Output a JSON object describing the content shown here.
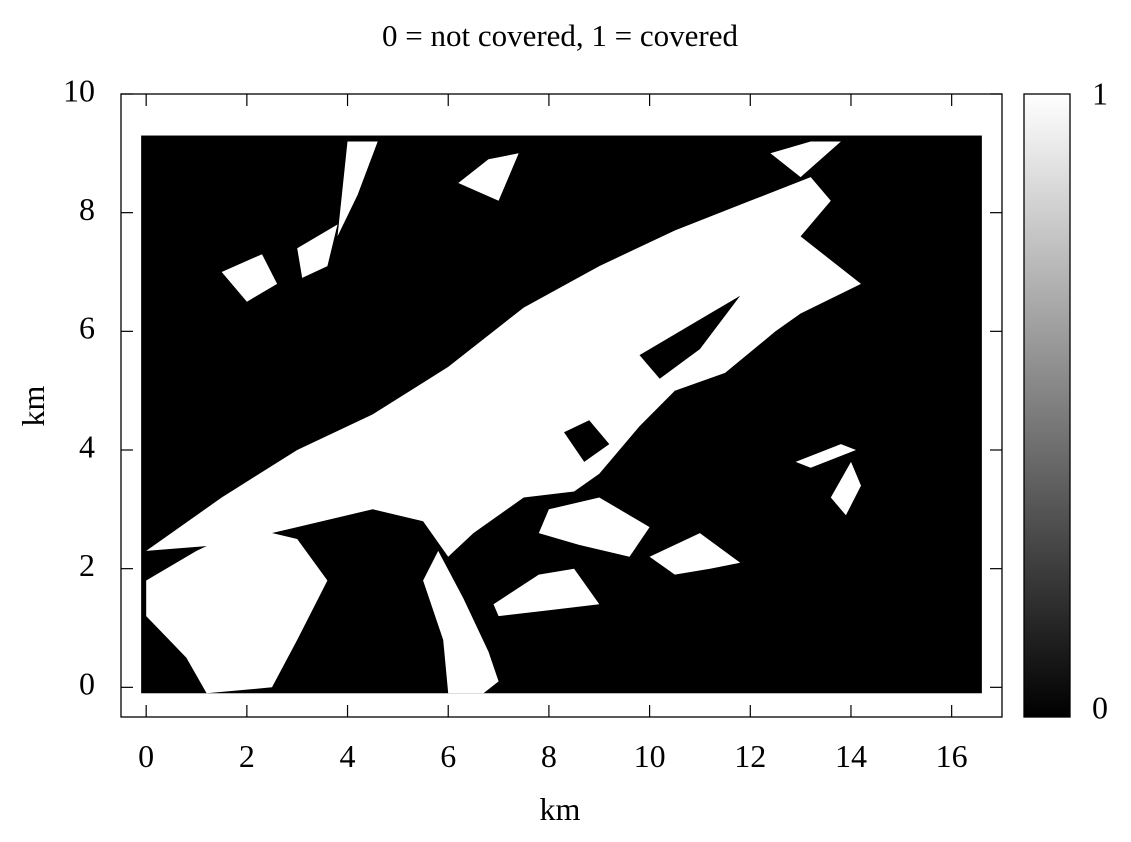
{
  "chart_data": {
    "type": "heatmap",
    "title": "0 = not covered, 1 = covered",
    "xlabel": "km",
    "ylabel": "km",
    "xlim": [
      -0.5,
      17.0
    ],
    "ylim": [
      -0.5,
      10.0
    ],
    "x_ticks": [
      0,
      2,
      4,
      6,
      8,
      10,
      12,
      14,
      16
    ],
    "x_tick_labels": [
      "0",
      "2",
      "4",
      "6",
      "8",
      "10",
      "12",
      "14",
      "16"
    ],
    "y_ticks": [
      0,
      2,
      4,
      6,
      8,
      10
    ],
    "y_tick_labels": [
      "0",
      "2",
      "4",
      "6",
      "8",
      "10"
    ],
    "data_extent": {
      "x": [
        -0.1,
        16.6
      ],
      "y": [
        -0.1,
        9.3
      ]
    },
    "colorbar": {
      "min": 0,
      "max": 1,
      "min_label": "0",
      "max_label": "1",
      "colors": [
        "#000000",
        "#ffffff"
      ]
    },
    "values_description_note": null,
    "covered_regions": [
      {
        "name": "main-band",
        "polygon": [
          [
            0.0,
            2.3
          ],
          [
            1.5,
            3.2
          ],
          [
            3.0,
            4.0
          ],
          [
            4.5,
            4.6
          ],
          [
            6.0,
            5.4
          ],
          [
            7.5,
            6.4
          ],
          [
            9.0,
            7.1
          ],
          [
            10.5,
            7.7
          ],
          [
            12.0,
            8.2
          ],
          [
            13.2,
            8.6
          ],
          [
            13.6,
            8.2
          ],
          [
            13.0,
            7.6
          ],
          [
            14.2,
            6.8
          ],
          [
            13.0,
            6.3
          ],
          [
            12.5,
            6.0
          ],
          [
            11.5,
            5.3
          ],
          [
            10.5,
            5.0
          ],
          [
            9.8,
            4.4
          ],
          [
            9.0,
            3.6
          ],
          [
            8.5,
            3.3
          ],
          [
            7.5,
            3.2
          ],
          [
            6.5,
            2.6
          ],
          [
            6.0,
            2.2
          ],
          [
            5.5,
            2.8
          ],
          [
            4.5,
            3.0
          ],
          [
            3.0,
            2.7
          ],
          [
            1.5,
            2.4
          ]
        ]
      },
      {
        "name": "left-lower",
        "polygon": [
          [
            0.0,
            1.8
          ],
          [
            1.0,
            2.3
          ],
          [
            2.0,
            2.7
          ],
          [
            3.0,
            2.5
          ],
          [
            3.6,
            1.8
          ],
          [
            3.0,
            0.8
          ],
          [
            2.5,
            0.0
          ],
          [
            1.2,
            -0.1
          ],
          [
            0.8,
            0.5
          ],
          [
            0.0,
            1.2
          ]
        ]
      },
      {
        "name": "lower-mid",
        "polygon": [
          [
            5.8,
            2.3
          ],
          [
            6.3,
            1.5
          ],
          [
            6.8,
            0.6
          ],
          [
            7.0,
            0.1
          ],
          [
            6.7,
            -0.1
          ],
          [
            6.0,
            -0.1
          ],
          [
            5.9,
            0.8
          ],
          [
            5.5,
            1.8
          ]
        ]
      },
      {
        "name": "southern-lobe",
        "polygon": [
          [
            6.9,
            1.4
          ],
          [
            7.8,
            1.9
          ],
          [
            8.5,
            2.0
          ],
          [
            9.0,
            1.4
          ],
          [
            8.0,
            1.3
          ],
          [
            7.0,
            1.2
          ]
        ]
      },
      {
        "name": "east-lobe",
        "polygon": [
          [
            10.0,
            2.2
          ],
          [
            11.0,
            2.6
          ],
          [
            11.8,
            2.1
          ],
          [
            11.2,
            2.0
          ],
          [
            10.5,
            1.9
          ]
        ]
      },
      {
        "name": "mid-lobe",
        "polygon": [
          [
            8.0,
            3.0
          ],
          [
            9.0,
            3.2
          ],
          [
            10.0,
            2.7
          ],
          [
            9.6,
            2.2
          ],
          [
            8.6,
            2.4
          ],
          [
            7.8,
            2.6
          ]
        ]
      },
      {
        "name": "north-ridge-1",
        "polygon": [
          [
            4.0,
            9.2
          ],
          [
            4.6,
            9.2
          ],
          [
            4.2,
            8.3
          ],
          [
            3.8,
            7.6
          ]
        ]
      },
      {
        "name": "north-ridge-2",
        "polygon": [
          [
            6.2,
            8.5
          ],
          [
            6.8,
            8.9
          ],
          [
            7.4,
            9.0
          ],
          [
            7.0,
            8.2
          ]
        ]
      },
      {
        "name": "north-ridge-3",
        "polygon": [
          [
            12.4,
            9.0
          ],
          [
            13.2,
            9.2
          ],
          [
            13.8,
            9.2
          ],
          [
            13.0,
            8.6
          ]
        ]
      },
      {
        "name": "west-patch-1",
        "polygon": [
          [
            1.5,
            7.0
          ],
          [
            2.3,
            7.3
          ],
          [
            2.6,
            6.8
          ],
          [
            2.0,
            6.5
          ]
        ]
      },
      {
        "name": "west-patch-2",
        "polygon": [
          [
            3.0,
            7.4
          ],
          [
            3.8,
            7.8
          ],
          [
            3.6,
            7.1
          ],
          [
            3.1,
            6.9
          ]
        ]
      },
      {
        "name": "east-streak",
        "polygon": [
          [
            12.9,
            3.8
          ],
          [
            13.8,
            4.1
          ],
          [
            14.1,
            4.0
          ],
          [
            13.2,
            3.7
          ]
        ]
      },
      {
        "name": "east-blob",
        "polygon": [
          [
            13.6,
            3.2
          ],
          [
            14.0,
            3.8
          ],
          [
            14.2,
            3.4
          ],
          [
            13.9,
            2.9
          ]
        ]
      }
    ],
    "uncovered_pockets": [
      {
        "name": "hole-1",
        "polygon": [
          [
            8.3,
            4.3
          ],
          [
            8.8,
            4.5
          ],
          [
            9.2,
            4.1
          ],
          [
            8.7,
            3.8
          ]
        ]
      },
      {
        "name": "hole-2",
        "polygon": [
          [
            9.8,
            5.6
          ],
          [
            11.2,
            6.3
          ],
          [
            11.8,
            6.6
          ],
          [
            11.0,
            5.7
          ],
          [
            10.2,
            5.2
          ]
        ]
      }
    ]
  }
}
